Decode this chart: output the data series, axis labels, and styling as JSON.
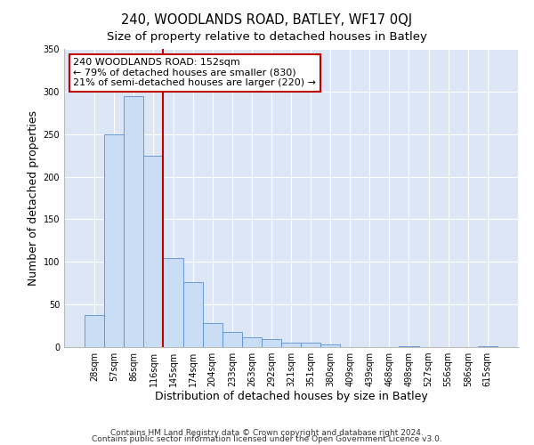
{
  "title": "240, WOODLANDS ROAD, BATLEY, WF17 0QJ",
  "subtitle": "Size of property relative to detached houses in Batley",
  "xlabel": "Distribution of detached houses by size in Batley",
  "ylabel": "Number of detached properties",
  "bar_labels": [
    "28sqm",
    "57sqm",
    "86sqm",
    "116sqm",
    "145sqm",
    "174sqm",
    "204sqm",
    "233sqm",
    "263sqm",
    "292sqm",
    "321sqm",
    "351sqm",
    "380sqm",
    "409sqm",
    "439sqm",
    "468sqm",
    "498sqm",
    "527sqm",
    "556sqm",
    "586sqm",
    "615sqm"
  ],
  "bar_values": [
    38,
    250,
    295,
    225,
    104,
    76,
    28,
    18,
    11,
    9,
    5,
    5,
    3,
    0,
    0,
    0,
    1,
    0,
    0,
    0,
    1
  ],
  "bar_color": "#c9ddf5",
  "bar_edge_color": "#5b8fd4",
  "vline_color": "#c00000",
  "vline_position": 3.5,
  "annotation_text": "240 WOODLANDS ROAD: 152sqm\n← 79% of detached houses are smaller (830)\n21% of semi-detached houses are larger (220) →",
  "annotation_box_color": "#ffffff",
  "annotation_box_edge_color": "#c00000",
  "ylim": [
    0,
    350
  ],
  "yticks": [
    0,
    50,
    100,
    150,
    200,
    250,
    300,
    350
  ],
  "footer1": "Contains HM Land Registry data © Crown copyright and database right 2024.",
  "footer2": "Contains public sector information licensed under the Open Government Licence v3.0.",
  "fig_background_color": "#ffffff",
  "plot_background_color": "#dce6f5",
  "grid_color": "#ffffff",
  "title_fontsize": 10.5,
  "subtitle_fontsize": 9.5,
  "axis_label_fontsize": 9,
  "tick_fontsize": 7,
  "annotation_fontsize": 8,
  "footer_fontsize": 6.5
}
